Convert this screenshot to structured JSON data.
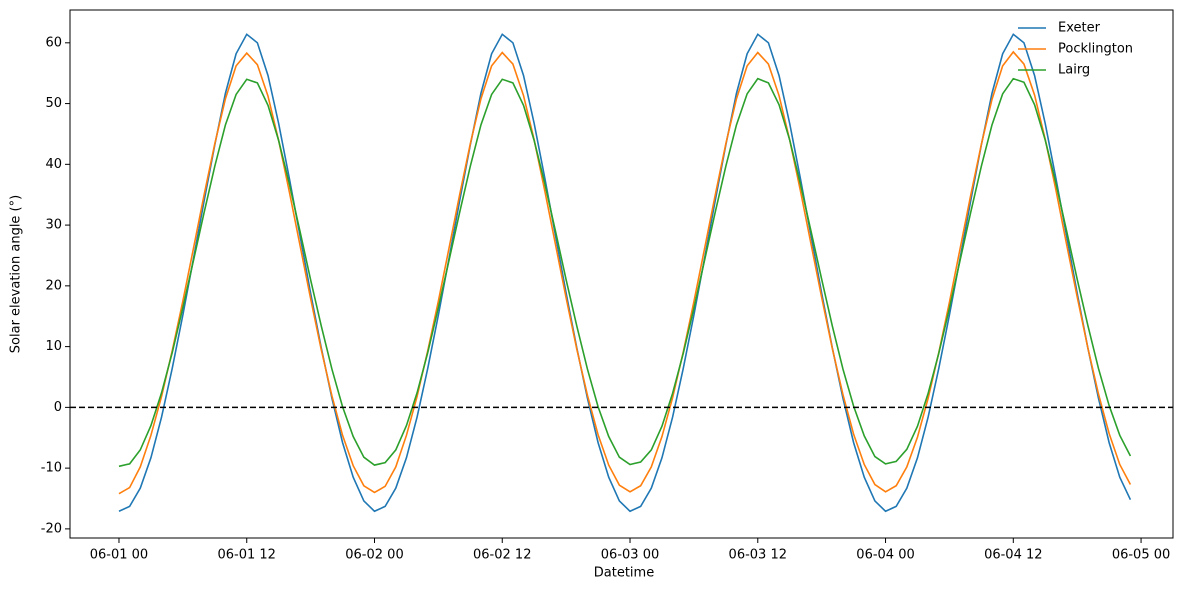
{
  "chart_data": {
    "type": "line",
    "xlabel": "Datetime",
    "ylabel": "Solar elevation angle (°)",
    "x": [
      "06-01 00",
      "06-01 01",
      "06-01 02",
      "06-01 03",
      "06-01 04",
      "06-01 05",
      "06-01 06",
      "06-01 07",
      "06-01 08",
      "06-01 09",
      "06-01 10",
      "06-01 11",
      "06-01 12",
      "06-01 13",
      "06-01 14",
      "06-01 15",
      "06-01 16",
      "06-01 17",
      "06-01 18",
      "06-01 19",
      "06-01 20",
      "06-01 21",
      "06-01 22",
      "06-01 23",
      "06-02 00",
      "06-02 01",
      "06-02 02",
      "06-02 03",
      "06-02 04",
      "06-02 05",
      "06-02 06",
      "06-02 07",
      "06-02 08",
      "06-02 09",
      "06-02 10",
      "06-02 11",
      "06-02 12",
      "06-02 13",
      "06-02 14",
      "06-02 15",
      "06-02 16",
      "06-02 17",
      "06-02 18",
      "06-02 19",
      "06-02 20",
      "06-02 21",
      "06-02 22",
      "06-02 23",
      "06-03 00",
      "06-03 01",
      "06-03 02",
      "06-03 03",
      "06-03 04",
      "06-03 05",
      "06-03 06",
      "06-03 07",
      "06-03 08",
      "06-03 09",
      "06-03 10",
      "06-03 11",
      "06-03 12",
      "06-03 13",
      "06-03 14",
      "06-03 15",
      "06-03 16",
      "06-03 17",
      "06-03 18",
      "06-03 19",
      "06-03 20",
      "06-03 21",
      "06-03 22",
      "06-03 23",
      "06-04 00",
      "06-04 01",
      "06-04 02",
      "06-04 03",
      "06-04 04",
      "06-04 05",
      "06-04 06",
      "06-04 07",
      "06-04 08",
      "06-04 09",
      "06-04 10",
      "06-04 11",
      "06-04 12",
      "06-04 13",
      "06-04 14",
      "06-04 15",
      "06-04 16",
      "06-04 17",
      "06-04 18",
      "06-04 19",
      "06-04 20",
      "06-04 21",
      "06-04 22",
      "06-04 23"
    ],
    "series": [
      {
        "name": "Exeter",
        "color": "#1f77b4",
        "values": [
          -17.1,
          -16.3,
          -13.3,
          -8.3,
          -1.6,
          6.4,
          15.2,
          24.5,
          34.0,
          43.2,
          51.7,
          58.2,
          61.4,
          60.0,
          54.6,
          46.7,
          37.7,
          28.3,
          18.8,
          9.8,
          1.5,
          -5.8,
          -11.5,
          -15.4,
          -17.1,
          -16.3,
          -13.3,
          -8.3,
          -1.6,
          6.4,
          15.2,
          24.5,
          34.0,
          43.2,
          51.7,
          58.2,
          61.4,
          60.0,
          54.6,
          46.7,
          37.7,
          28.3,
          18.8,
          9.8,
          1.5,
          -5.8,
          -11.5,
          -15.4,
          -17.1,
          -16.3,
          -13.3,
          -8.3,
          -1.6,
          6.4,
          15.2,
          24.5,
          34.0,
          43.2,
          51.7,
          58.2,
          61.4,
          60.0,
          54.6,
          46.7,
          37.7,
          28.3,
          18.8,
          9.8,
          1.5,
          -5.8,
          -11.5,
          -15.4,
          -17.1,
          -16.3,
          -13.3,
          -8.3,
          -1.6,
          6.4,
          15.2,
          24.5,
          34.0,
          43.2,
          51.7,
          58.2,
          61.4,
          60.0,
          54.6,
          46.7,
          37.7,
          28.3,
          18.8,
          9.8,
          1.5,
          -5.8,
          -11.5,
          -15.2
        ]
      },
      {
        "name": "Pocklington",
        "color": "#ff7f0e",
        "values": [
          -14.2,
          -13.2,
          -9.8,
          -4.6,
          1.8,
          9.3,
          17.5,
          26.2,
          35.0,
          43.4,
          50.8,
          56.2,
          58.3,
          56.4,
          51.2,
          43.9,
          35.5,
          26.7,
          17.9,
          9.5,
          1.9,
          -4.6,
          -9.6,
          -12.9,
          -14.0,
          -13.0,
          -9.8,
          -4.6,
          1.8,
          9.3,
          17.5,
          26.2,
          35.0,
          43.4,
          50.8,
          56.2,
          58.4,
          56.5,
          51.3,
          44.0,
          35.6,
          26.8,
          18.0,
          9.6,
          2.0,
          -4.5,
          -9.5,
          -12.8,
          -13.9,
          -12.9,
          -9.8,
          -4.8,
          1.6,
          9.1,
          17.4,
          26.1,
          34.9,
          43.4,
          50.8,
          56.2,
          58.4,
          56.5,
          51.3,
          44.0,
          35.7,
          26.9,
          18.1,
          9.7,
          2.1,
          -4.4,
          -9.4,
          -12.7,
          -13.9,
          -12.9,
          -9.8,
          -4.9,
          1.5,
          9.0,
          17.3,
          26.1,
          34.9,
          43.3,
          50.7,
          56.2,
          58.5,
          56.5,
          51.4,
          44.1,
          35.8,
          26.9,
          18.2,
          9.8,
          2.2,
          -4.3,
          -9.4,
          -12.7
        ]
      },
      {
        "name": "Lairg",
        "color": "#2ca02c",
        "values": [
          -9.7,
          -9.3,
          -7.0,
          -3.0,
          2.4,
          9.0,
          16.4,
          24.2,
          32.1,
          39.7,
          46.5,
          51.5,
          54.0,
          53.4,
          49.7,
          43.9,
          36.8,
          29.0,
          21.0,
          13.4,
          6.3,
          0.1,
          -4.8,
          -8.2,
          -9.5,
          -9.1,
          -7.0,
          -3.0,
          2.4,
          9.0,
          16.4,
          24.2,
          32.1,
          39.7,
          46.5,
          51.5,
          54.0,
          53.4,
          49.7,
          43.9,
          36.8,
          29.0,
          21.0,
          13.4,
          6.3,
          0.1,
          -4.8,
          -8.2,
          -9.4,
          -9.0,
          -7.0,
          -3.1,
          2.3,
          8.9,
          16.3,
          24.2,
          32.1,
          39.7,
          46.5,
          51.6,
          54.1,
          53.4,
          49.8,
          44.0,
          36.8,
          29.0,
          21.1,
          13.4,
          6.3,
          0.2,
          -4.7,
          -8.1,
          -9.3,
          -8.9,
          -6.9,
          -3.1,
          2.3,
          8.9,
          16.3,
          24.2,
          32.1,
          39.7,
          46.5,
          51.6,
          54.1,
          53.5,
          49.8,
          44.0,
          36.9,
          29.1,
          21.1,
          13.5,
          6.4,
          0.3,
          -4.6,
          -8.0
        ]
      }
    ],
    "xlim": [
      "05-31 19:24",
      "06-05 03:00"
    ],
    "xticks": [
      "06-01 00",
      "06-01 12",
      "06-02 00",
      "06-02 12",
      "06-03 00",
      "06-03 12",
      "06-04 00",
      "06-04 12",
      "06-05 00"
    ],
    "ylim": [
      -21.5,
      65.4
    ],
    "yticks": [
      -20,
      -10,
      0,
      10,
      20,
      30,
      40,
      50,
      60
    ],
    "hline": 0,
    "legend": "upper right"
  }
}
